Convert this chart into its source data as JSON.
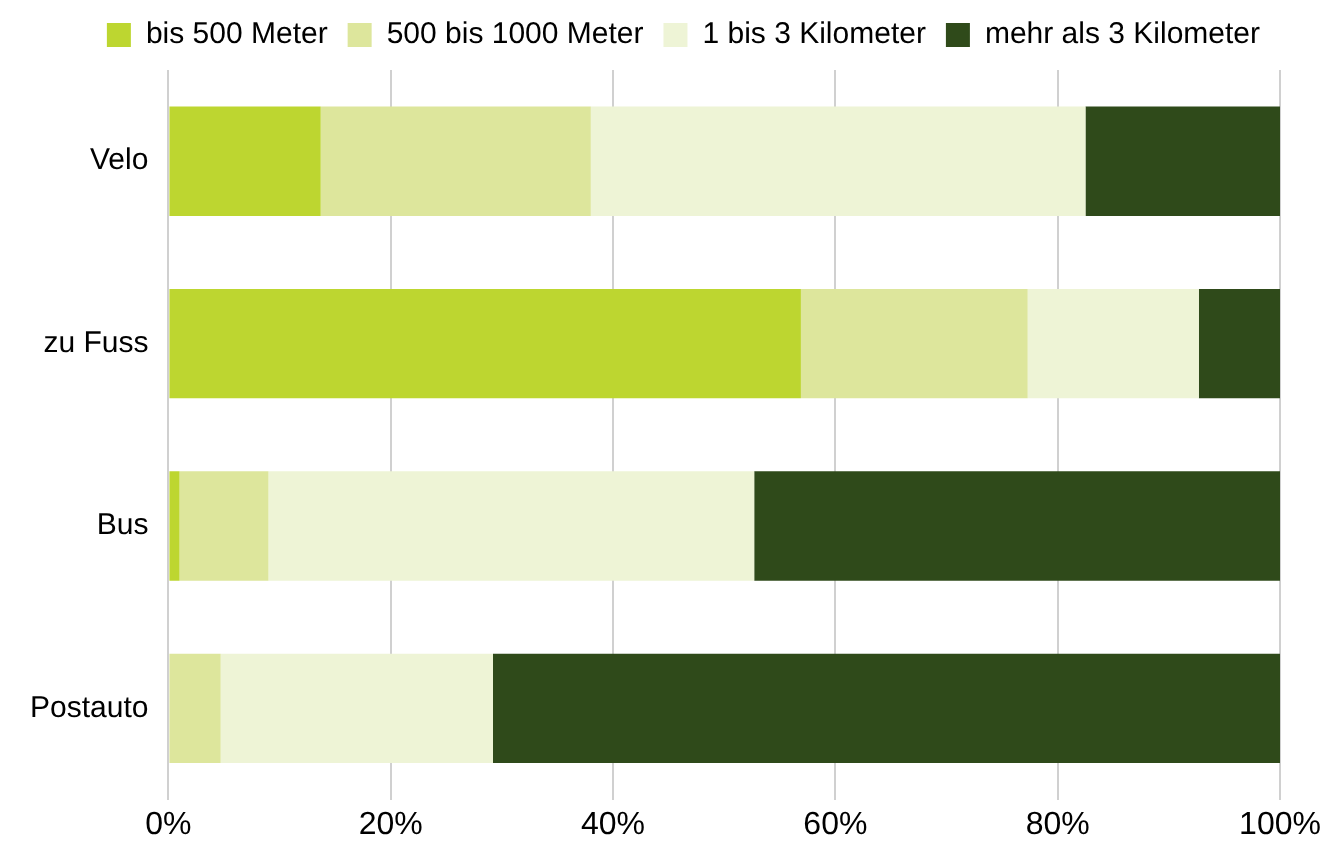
{
  "chart_data": {
    "type": "bar",
    "orientation": "horizontal",
    "stacked": true,
    "categories": [
      "Velo",
      "zu Fuss",
      "Bus",
      "Postauto"
    ],
    "series": [
      {
        "name": "bis 500 Meter",
        "color": "#bdd630",
        "values": [
          13.7,
          56.9,
          1.0,
          0
        ]
      },
      {
        "name": "500 bis 1000 Meter",
        "color": "#dde69c",
        "values": [
          24.3,
          20.4,
          8.0,
          4.7
        ]
      },
      {
        "name": "1 bis 3 Kilometer",
        "color": "#eef4d6",
        "values": [
          44.5,
          15.4,
          43.7,
          24.5
        ]
      },
      {
        "name": "mehr als 3 Kilometer",
        "color": "#2f4a1a",
        "values": [
          17.5,
          7.3,
          47.3,
          70.8
        ]
      }
    ],
    "xlim": [
      0,
      100
    ],
    "xticks": [
      {
        "value": 0,
        "label": "0%"
      },
      {
        "value": 20,
        "label": "20%"
      },
      {
        "value": 40,
        "label": "40%"
      },
      {
        "value": 60,
        "label": "60%"
      },
      {
        "value": 80,
        "label": "80%"
      },
      {
        "value": 100,
        "label": "100%"
      }
    ],
    "grid": "x",
    "legend": "top"
  }
}
